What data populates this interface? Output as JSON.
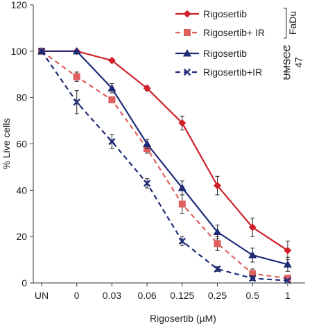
{
  "chart_data": {
    "type": "line",
    "xlabel": "Rigosertib (µM)",
    "ylabel": "% Live cells",
    "ylim": [
      0,
      120
    ],
    "yticks": [
      0,
      20,
      40,
      60,
      80,
      100,
      120
    ],
    "categories": [
      "UN",
      "0",
      "0.03",
      "0.06",
      "0.125",
      "0.25",
      "0.5",
      "1"
    ],
    "grid": false,
    "legend_position": "top-right",
    "series": [
      {
        "name": "Rigosertib",
        "group": "FaDu",
        "color": "#d0202a",
        "line_style": "solid",
        "marker": "diamond",
        "values": [
          100,
          100,
          96,
          84,
          69,
          42,
          24,
          14
        ],
        "errors": [
          0,
          0,
          0,
          1,
          3,
          4,
          4,
          4
        ]
      },
      {
        "name": "Rigosertib+ IR",
        "group": "FaDu",
        "color": "#e06060",
        "line_style": "dashed",
        "marker": "square",
        "values": [
          100,
          89,
          79,
          58,
          34,
          17,
          4,
          2
        ],
        "errors": [
          0,
          2,
          1,
          2,
          4,
          3,
          2,
          1
        ]
      },
      {
        "name": "Rigosertib",
        "group": "UMSCC 47",
        "color": "#1c2a78",
        "line_style": "solid",
        "marker": "triangle",
        "values": [
          100,
          100,
          84,
          60,
          41,
          22,
          12,
          8
        ],
        "errors": [
          0,
          0,
          2,
          2,
          3,
          3,
          3,
          3
        ]
      },
      {
        "name": "Rigosertib+IR",
        "group": "UMSCC 47",
        "color": "#1c2a78",
        "line_style": "dashed",
        "marker": "x",
        "values": [
          100,
          78,
          61,
          43,
          18,
          6,
          2,
          1
        ],
        "errors": [
          0,
          5,
          3,
          2,
          2,
          1,
          1,
          0
        ]
      }
    ],
    "groups": [
      {
        "label_lines": [
          "FaDu"
        ]
      },
      {
        "label_lines": [
          "UMSCC",
          "47"
        ]
      }
    ]
  }
}
